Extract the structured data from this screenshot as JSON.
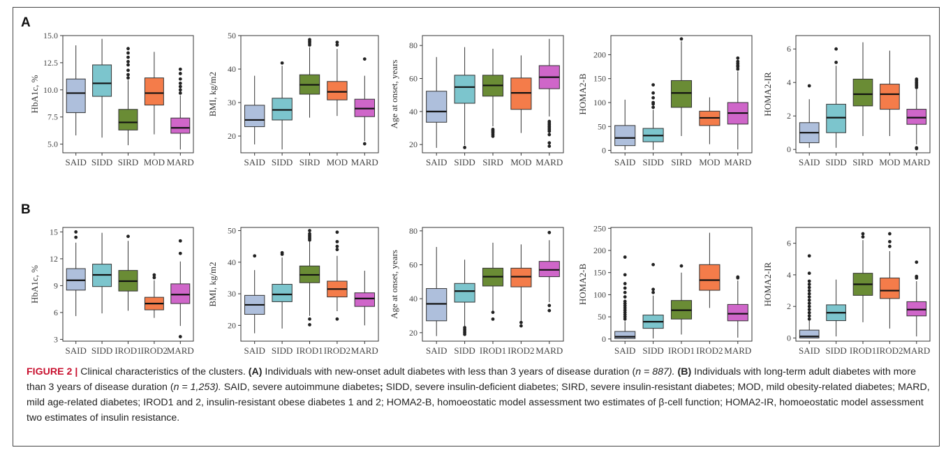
{
  "panels": [
    {
      "label": "A"
    },
    {
      "label": "B"
    }
  ],
  "colors": {
    "SAID": "#aebfdc",
    "SIDD": "#7cc5cd",
    "SIRD": "#6a8c35",
    "MOD": "#f47c4a",
    "MARD": "#cf66c9",
    "IROD1": "#6a8c35",
    "IROD2": "#f47c4a"
  },
  "chart_data": [
    {
      "type": "box",
      "panel": "A",
      "ylabel": "HbA1c, %",
      "ylim": [
        4.2,
        15.0
      ],
      "yticks": [
        "15.0",
        "12.5",
        "10.0",
        "7.5",
        "5.0"
      ],
      "ytick_values": [
        15,
        12.5,
        10,
        7.5,
        5
      ],
      "categories": [
        "SAID",
        "SIDD",
        "SIRD",
        "MOD",
        "MARD"
      ],
      "boxes": [
        {
          "min": 5.8,
          "q1": 7.9,
          "median": 9.7,
          "q3": 11.0,
          "max": 14.1,
          "outliers": []
        },
        {
          "min": 5.6,
          "q1": 9.4,
          "median": 10.6,
          "q3": 12.3,
          "max": 14.7,
          "outliers": []
        },
        {
          "min": 4.9,
          "q1": 6.3,
          "median": 7.0,
          "q3": 8.2,
          "max": 10.9,
          "outliers": [
            11.1,
            11.4,
            11.8,
            12.3,
            12.6,
            13.0,
            13.4,
            13.8
          ]
        },
        {
          "min": 5.9,
          "q1": 8.6,
          "median": 9.7,
          "q3": 11.1,
          "max": 13.5,
          "outliers": []
        },
        {
          "min": 4.5,
          "q1": 6.0,
          "median": 6.5,
          "q3": 7.4,
          "max": 9.5,
          "outliers": [
            9.7,
            10.0,
            10.3,
            10.6,
            11.0,
            11.5,
            11.9
          ]
        }
      ]
    },
    {
      "type": "box",
      "panel": "A",
      "ylabel": "BMI, kg/m2",
      "ylim": [
        15,
        50
      ],
      "yticks": [
        "50",
        "40",
        "30",
        "20"
      ],
      "ytick_values": [
        50,
        40,
        30,
        20
      ],
      "categories": [
        "SAID",
        "SIDD",
        "SIRD",
        "MOD",
        "MARD"
      ],
      "boxes": [
        {
          "min": 17.5,
          "q1": 22.8,
          "median": 24.8,
          "q3": 29.2,
          "max": 38.0,
          "outliers": []
        },
        {
          "min": 16.0,
          "q1": 24.8,
          "median": 27.8,
          "q3": 31.3,
          "max": 41.0,
          "outliers": [
            41.8
          ]
        },
        {
          "min": 25.5,
          "q1": 32.5,
          "median": 35.3,
          "q3": 38.3,
          "max": 46.5,
          "outliers": [
            47.2,
            47.8,
            48.3,
            48.8
          ]
        },
        {
          "min": 26.0,
          "q1": 30.8,
          "median": 33.2,
          "q3": 36.3,
          "max": 46.0,
          "outliers": [
            47.2,
            48.0
          ]
        },
        {
          "min": 18.5,
          "q1": 25.8,
          "median": 28.2,
          "q3": 31.0,
          "max": 38.0,
          "outliers": [
            43.0,
            17.7
          ]
        }
      ]
    },
    {
      "type": "box",
      "panel": "A",
      "ylabel": "Age at onset, years",
      "ylim": [
        15,
        86
      ],
      "yticks": [
        "80",
        "60",
        "40",
        "20"
      ],
      "ytick_values": [
        80,
        60,
        40,
        20
      ],
      "categories": [
        "SAID",
        "SIDD",
        "SIRD",
        "MOD",
        "MARD"
      ],
      "boxes": [
        {
          "min": 18.0,
          "q1": 33.5,
          "median": 40.0,
          "q3": 52.3,
          "max": 73.0,
          "outliers": []
        },
        {
          "min": 19.5,
          "q1": 45.0,
          "median": 54.8,
          "q3": 62.0,
          "max": 79.0,
          "outliers": [
            18.2
          ]
        },
        {
          "min": 31.0,
          "q1": 49.3,
          "median": 55.8,
          "q3": 62.0,
          "max": 78.0,
          "outliers": [
            25.0,
            26.0,
            27.0,
            27.8,
            28.5,
            29.2
          ]
        },
        {
          "min": 27.0,
          "q1": 41.3,
          "median": 51.3,
          "q3": 60.3,
          "max": 74.0,
          "outliers": []
        },
        {
          "min": 37.0,
          "q1": 53.8,
          "median": 60.8,
          "q3": 67.8,
          "max": 84.0,
          "outliers": [
            19.0,
            21.0,
            26.0,
            28.0,
            29.0,
            30.0,
            31.0,
            32.0,
            33.0,
            34.0
          ]
        }
      ]
    },
    {
      "type": "box",
      "panel": "A",
      "ylabel": "HOMA2-B",
      "ylim": [
        -5,
        240
      ],
      "yticks": [
        "200",
        "150",
        "100",
        "50",
        "0"
      ],
      "ytick_values": [
        200,
        150,
        100,
        50,
        0
      ],
      "categories": [
        "SAID",
        "SIDD",
        "SIRD",
        "MOD",
        "MARD"
      ],
      "boxes": [
        {
          "min": 1,
          "q1": 10,
          "median": 26,
          "q3": 52,
          "max": 106,
          "outliers": []
        },
        {
          "min": 1,
          "q1": 18,
          "median": 31,
          "q3": 46,
          "max": 85,
          "outliers": [
            90,
            97,
            100,
            110,
            120,
            137
          ]
        },
        {
          "min": 30,
          "q1": 90,
          "median": 120,
          "q3": 146,
          "max": 228,
          "outliers": [
            233
          ]
        },
        {
          "min": 13,
          "q1": 52,
          "median": 68,
          "q3": 82,
          "max": 111,
          "outliers": []
        },
        {
          "min": 2,
          "q1": 55,
          "median": 78,
          "q3": 100,
          "max": 165,
          "outliers": [
            170,
            175,
            178,
            182,
            186,
            193
          ]
        }
      ]
    },
    {
      "type": "box",
      "panel": "A",
      "ylabel": "HOMA2-IR",
      "ylim": [
        -0.2,
        6.8
      ],
      "yticks": [
        "6",
        "4",
        "2",
        "0"
      ],
      "ytick_values": [
        6,
        4,
        2,
        0
      ],
      "categories": [
        "SAID",
        "SIDD",
        "SIRD",
        "MOD",
        "MARD"
      ],
      "boxes": [
        {
          "min": 0.1,
          "q1": 0.4,
          "median": 1.0,
          "q3": 1.6,
          "max": 3.0,
          "outliers": [
            3.8
          ]
        },
        {
          "min": 0.1,
          "q1": 1.0,
          "median": 1.9,
          "q3": 2.7,
          "max": 5.0,
          "outliers": [
            5.2,
            6.0
          ]
        },
        {
          "min": 0.8,
          "q1": 2.6,
          "median": 3.3,
          "q3": 4.2,
          "max": 6.4,
          "outliers": []
        },
        {
          "min": 0.8,
          "q1": 2.4,
          "median": 3.3,
          "q3": 3.9,
          "max": 5.9,
          "outliers": []
        },
        {
          "min": 0.3,
          "q1": 1.5,
          "median": 1.9,
          "q3": 2.4,
          "max": 3.6,
          "outliers": [
            3.7,
            3.8,
            3.9,
            4.0,
            4.1,
            4.2,
            0.1,
            0.05
          ]
        }
      ]
    },
    {
      "type": "box",
      "panel": "B",
      "ylabel": "HbA1c, %",
      "ylim": [
        2.8,
        15.5
      ],
      "yticks": [
        "15",
        "12",
        "9",
        "6",
        "3"
      ],
      "ytick_values": [
        15,
        12,
        9,
        6,
        3
      ],
      "categories": [
        "SAID",
        "SIDD",
        "IROD1",
        "IROD2",
        "MARD"
      ],
      "boxes": [
        {
          "min": 5.6,
          "q1": 8.5,
          "median": 9.6,
          "q3": 10.9,
          "max": 13.8,
          "outliers": [
            14.4,
            15.0
          ]
        },
        {
          "min": 5.9,
          "q1": 8.9,
          "median": 10.2,
          "q3": 11.4,
          "max": 14.9,
          "outliers": []
        },
        {
          "min": 6.2,
          "q1": 8.4,
          "median": 9.5,
          "q3": 10.7,
          "max": 14.0,
          "outliers": [
            14.5
          ]
        },
        {
          "min": 5.4,
          "q1": 6.3,
          "median": 7.0,
          "q3": 7.7,
          "max": 9.6,
          "outliers": [
            9.9,
            10.2
          ]
        },
        {
          "min": 4.5,
          "q1": 7.0,
          "median": 8.0,
          "q3": 9.2,
          "max": 11.7,
          "outliers": [
            12.6,
            14.0,
            3.3
          ]
        }
      ]
    },
    {
      "type": "box",
      "panel": "B",
      "ylabel": "BMI, kg/m2",
      "ylim": [
        15,
        51
      ],
      "yticks": [
        "50",
        "40",
        "30",
        "20"
      ],
      "ytick_values": [
        50,
        40,
        30,
        20
      ],
      "categories": [
        "SAID",
        "SIDD",
        "IROD1",
        "IROD2",
        "MARD"
      ],
      "boxes": [
        {
          "min": 17.5,
          "q1": 23.5,
          "median": 26.5,
          "q3": 29.5,
          "max": 37.5,
          "outliers": [
            42.0
          ]
        },
        {
          "min": 19.0,
          "q1": 27.5,
          "median": 29.8,
          "q3": 33.0,
          "max": 41.5,
          "outliers": [
            42.5,
            43.0
          ]
        },
        {
          "min": 23.0,
          "q1": 33.5,
          "median": 36.0,
          "q3": 38.8,
          "max": 46.5,
          "outliers": [
            47.0,
            47.5,
            48.0,
            48.5,
            49.0,
            50.0,
            22.0,
            20.2
          ]
        },
        {
          "min": 24.5,
          "q1": 29.0,
          "median": 31.5,
          "q3": 34.0,
          "max": 42.0,
          "outliers": [
            44.0,
            45.0,
            46.5,
            49.5,
            22.0
          ]
        },
        {
          "min": 20.0,
          "q1": 26.0,
          "median": 28.5,
          "q3": 30.3,
          "max": 37.3,
          "outliers": []
        }
      ]
    },
    {
      "type": "box",
      "panel": "B",
      "ylabel": "Age at onset, years",
      "ylim": [
        15,
        82
      ],
      "yticks": [
        "80",
        "60",
        "40",
        "20"
      ],
      "ytick_values": [
        80,
        60,
        40,
        20
      ],
      "categories": [
        "SAID",
        "SIDD",
        "IROD1",
        "IROD2",
        "MARD"
      ],
      "boxes": [
        {
          "min": 18.0,
          "q1": 27.0,
          "median": 37.0,
          "q3": 46.0,
          "max": 70.5,
          "outliers": []
        },
        {
          "min": 24.0,
          "q1": 38.0,
          "median": 44.5,
          "q3": 49.0,
          "max": 63.0,
          "outliers": [
            19.0,
            20.0,
            21.0,
            22.0,
            23.0
          ]
        },
        {
          "min": 33.0,
          "q1": 47.5,
          "median": 53.0,
          "q3": 58.0,
          "max": 73.0,
          "outliers": [
            28.0,
            32.0
          ]
        },
        {
          "min": 27.0,
          "q1": 47.0,
          "median": 53.0,
          "q3": 58.0,
          "max": 72.0,
          "outliers": [
            24.0,
            26.0
          ]
        },
        {
          "min": 38.0,
          "q1": 53.0,
          "median": 57.0,
          "q3": 62.0,
          "max": 74.5,
          "outliers": [
            79.0,
            33.0,
            36.0
          ]
        }
      ]
    },
    {
      "type": "box",
      "panel": "B",
      "ylabel": "HOMA2-B",
      "ylim": [
        -5,
        252
      ],
      "yticks": [
        "250",
        "200",
        "150",
        "100",
        "50",
        "0"
      ],
      "ytick_values": [
        250,
        200,
        150,
        100,
        50,
        0
      ],
      "categories": [
        "SAID",
        "SIDD",
        "IROD1",
        "IROD2",
        "MARD"
      ],
      "boxes": [
        {
          "min": 0,
          "q1": 1,
          "median": 5,
          "q3": 17,
          "max": 40,
          "outliers": [
            45,
            50,
            55,
            60,
            65,
            70,
            75,
            80,
            85,
            95,
            105,
            115,
            125,
            145,
            185
          ]
        },
        {
          "min": 1,
          "q1": 24,
          "median": 39,
          "q3": 54,
          "max": 98,
          "outliers": [
            105,
            112,
            168
          ]
        },
        {
          "min": 10,
          "q1": 45,
          "median": 65,
          "q3": 87,
          "max": 150,
          "outliers": [
            165
          ]
        },
        {
          "min": 70,
          "q1": 110,
          "median": 133,
          "q3": 168,
          "max": 240,
          "outliers": []
        },
        {
          "min": 3,
          "q1": 41,
          "median": 57,
          "q3": 78,
          "max": 132,
          "outliers": [
            138,
            140
          ]
        }
      ]
    },
    {
      "type": "box",
      "panel": "B",
      "ylabel": "HOMA2-IR",
      "ylim": [
        -0.2,
        7.0
      ],
      "yticks": [
        "6",
        "4",
        "2",
        "0"
      ],
      "ytick_values": [
        6,
        4,
        2,
        0
      ],
      "categories": [
        "SAID",
        "SIDD",
        "IROD1",
        "IROD2",
        "MARD"
      ],
      "boxes": [
        {
          "min": 0.0,
          "q1": 0.0,
          "median": 0.1,
          "q3": 0.5,
          "max": 1.1,
          "outliers": [
            1.2,
            1.4,
            1.6,
            1.8,
            2.0,
            2.2,
            2.4,
            2.6,
            2.8,
            3.0,
            3.2,
            3.4,
            3.6,
            4.1,
            5.2
          ]
        },
        {
          "min": 0.1,
          "q1": 1.1,
          "median": 1.6,
          "q3": 2.1,
          "max": 3.7,
          "outliers": []
        },
        {
          "min": 1.0,
          "q1": 2.7,
          "median": 3.4,
          "q3": 4.1,
          "max": 6.2,
          "outliers": [
            6.4,
            6.6
          ]
        },
        {
          "min": 0.6,
          "q1": 2.5,
          "median": 3.0,
          "q3": 3.8,
          "max": 5.5,
          "outliers": [
            5.8,
            6.1,
            6.6
          ]
        },
        {
          "min": 0.1,
          "q1": 1.4,
          "median": 1.8,
          "q3": 2.3,
          "max": 3.6,
          "outliers": [
            3.8,
            3.9,
            4.8
          ]
        }
      ]
    }
  ],
  "caption": {
    "figure_label": "FIGURE 2 |",
    "intro": " Clinical characteristics of the clusters. ",
    "a_label": "(A)",
    "a_text": " Individuals with new-onset adult diabetes with less than 3 years of disease duration (",
    "a_n": "n = 887). ",
    "b_label": "(B)",
    "b_text": " Individuals with long-term adult diabetes with more than 3 years of disease duration (",
    "b_n": "n = 1,253). ",
    "said": "SAID, severe autoimmune diabetes",
    "semicolon": ";",
    "rest": " SIDD, severe insulin-deficient diabetes; SIRD, severe insulin-resistant diabetes; MOD, mild obesity-related diabetes; MARD, mild age-related diabetes; IROD1 and 2, insulin-resistant obese diabetes 1 and 2; HOMA2-B, homoeostatic model assessment two estimates of β-cell function; HOMA2-IR, homoeostatic model assessment two estimates of insulin resistance."
  }
}
